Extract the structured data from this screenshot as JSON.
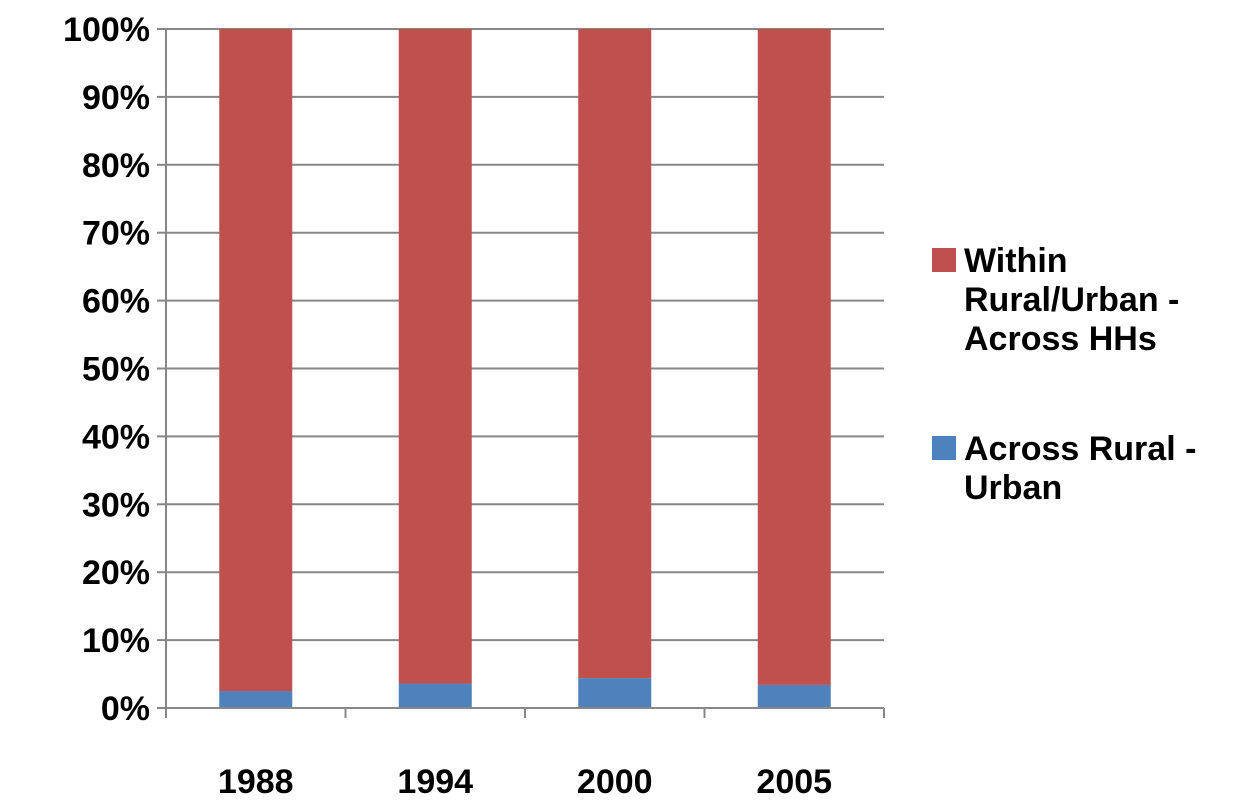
{
  "chart_data": {
    "type": "bar",
    "stacked": true,
    "percent_stacked": true,
    "categories": [
      "1988",
      "1994",
      "2000",
      "2005"
    ],
    "series": [
      {
        "name": "Across Rural - Urban",
        "values": [
          2.5,
          3.6,
          4.4,
          3.4
        ],
        "color": "#4f81bd"
      },
      {
        "name": "Within Rural/Urban - Across HHs",
        "values": [
          97.5,
          96.4,
          95.6,
          96.6
        ],
        "color": "#c0504d"
      }
    ],
    "y_ticks": [
      "0%",
      "10%",
      "20%",
      "30%",
      "40%",
      "50%",
      "60%",
      "70%",
      "80%",
      "90%",
      "100%"
    ],
    "ylim": [
      0,
      100
    ],
    "grid": true,
    "legend_position": "right",
    "legend_entries": [
      {
        "lines": [
          "Within",
          "Rural/Urban -",
          "Across HHs"
        ],
        "color": "#c0504d"
      },
      {
        "lines": [
          "Across Rural -",
          "Urban"
        ],
        "color": "#4f81bd"
      }
    ],
    "title": "",
    "xlabel": "",
    "ylabel": ""
  }
}
